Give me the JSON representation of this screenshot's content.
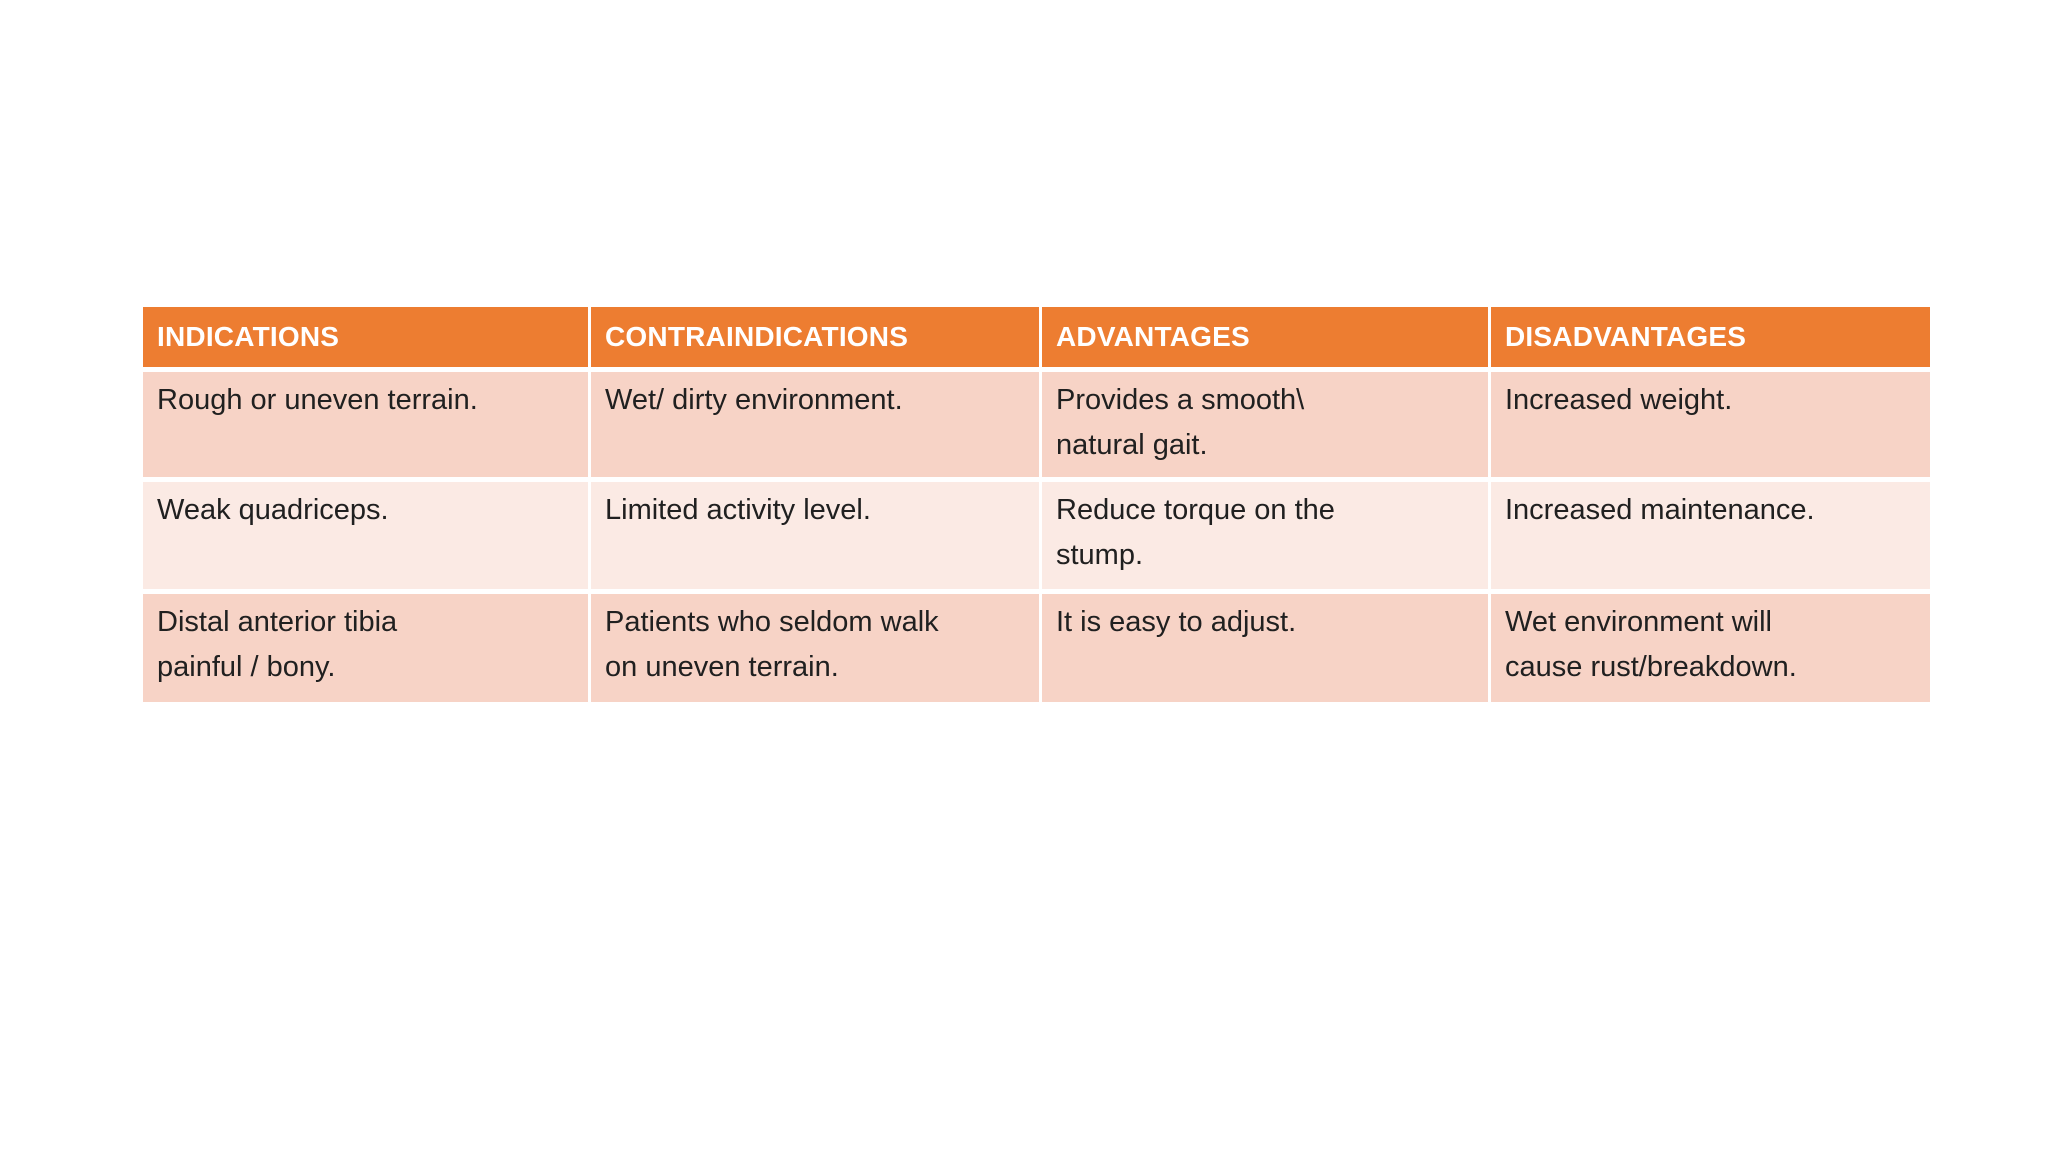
{
  "slide": {
    "background_color": "#FFFFFF"
  },
  "table": {
    "style": {
      "header_bg": "#ED7D31",
      "header_text_color": "#FFFFFF",
      "band_odd_bg": "#F7D3C6",
      "band_even_bg": "#FBEAE4",
      "body_text_color": "#202020",
      "divider_color": "#FFFFFF"
    },
    "columns": [
      {
        "label": "INDICATIONS"
      },
      {
        "label": "CONTRAINDICATIONS"
      },
      {
        "label": "ADVANTAGES"
      },
      {
        "label": "DISADVANTAGES"
      }
    ],
    "rows": [
      [
        "Rough or uneven terrain.",
        "Wet/ dirty environment.",
        "Provides a smooth\\\nnatural gait.",
        "Increased weight."
      ],
      [
        "Weak quadriceps.",
        "Limited activity level.",
        "Reduce torque on the\nstump.",
        "Increased maintenance."
      ],
      [
        "Distal anterior tibia\npainful / bony.",
        "Patients who seldom walk\non uneven terrain.",
        "It is easy to adjust.",
        "Wet environment will\ncause rust/breakdown."
      ]
    ]
  }
}
